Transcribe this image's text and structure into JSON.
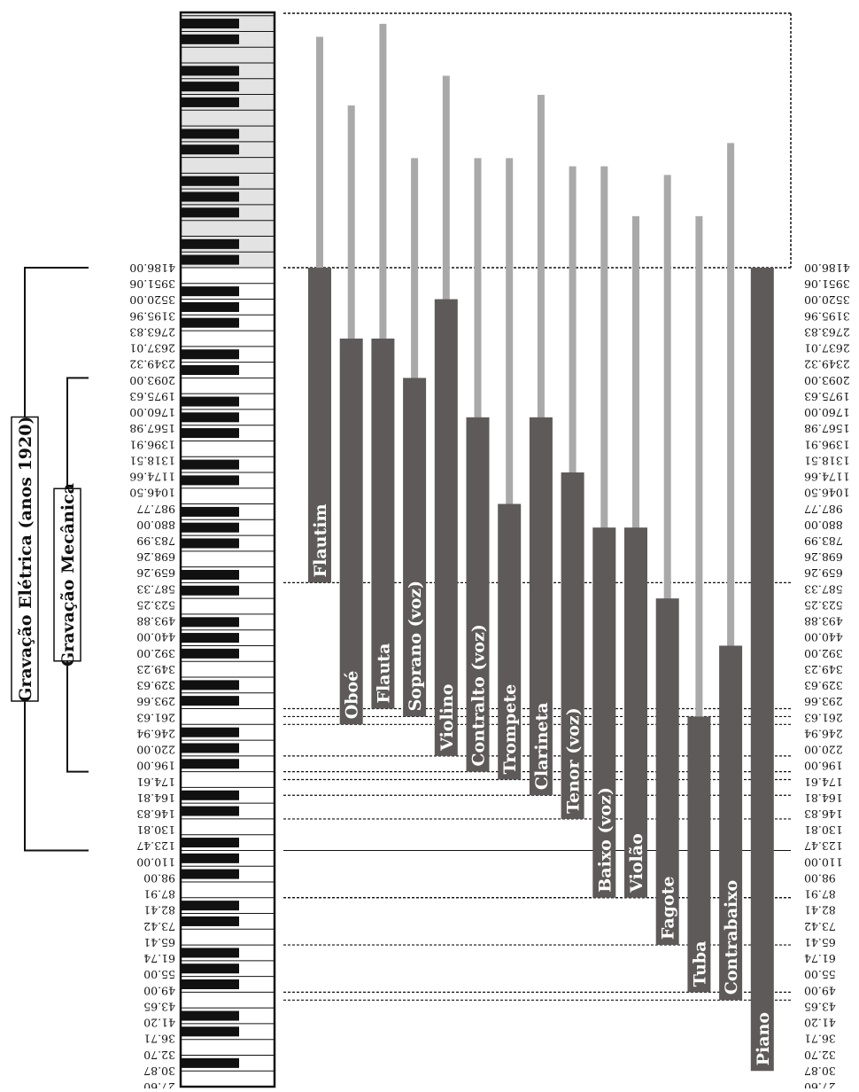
{
  "frequencies": [
    "4186.00",
    "3951.06",
    "3520.00",
    "3195.96",
    "2763.83",
    "2637.01",
    "2349.32",
    "2093.00",
    "1975.63",
    "1760.00",
    "1567.98",
    "1396.91",
    "1318.51",
    "1174.66",
    "1046.50",
    "987.77",
    "880.00",
    "783.99",
    "698.26",
    "659.26",
    "587.33",
    "523.25",
    "493.88",
    "440.00",
    "392.00",
    "349.23",
    "329.63",
    "293.66",
    "261.63",
    "246.94",
    "220.00",
    "196.00",
    "174.61",
    "164.81",
    "146.83",
    "130.81",
    "123.47",
    "110.00",
    "98.00",
    "87.91",
    "82.41",
    "73.42",
    "65.41",
    "61.74",
    "55.00",
    "49.00",
    "43.65",
    "41.20",
    "36.71",
    "32.70",
    "30.87",
    "27.60"
  ],
  "recording_ranges": {
    "electric": {
      "label": "Gravação Elétrica (anos 1920)",
      "high_hz": 4186.0,
      "low_hz": 110.0
    },
    "mechanical": {
      "label": "Gravação Mecânica",
      "high_hz": 2093.0,
      "low_hz": 174.61
    }
  },
  "instruments": [
    {
      "name": "Flautim",
      "low_hz": 587.33,
      "high_hz": 4186.0,
      "overtone_top_hz": 21000
    },
    {
      "name": "Oboé",
      "low_hz": 233.08,
      "high_hz": 2637.01,
      "overtone_top_hz": 13000
    },
    {
      "name": "Flauta",
      "low_hz": 261.63,
      "high_hz": 2637.01,
      "overtone_top_hz": 23000
    },
    {
      "name": "Soprano (voz)",
      "low_hz": 246.94,
      "high_hz": 2093.0,
      "overtone_top_hz": 9000
    },
    {
      "name": "Violino",
      "low_hz": 196.0,
      "high_hz": 3520.0,
      "overtone_top_hz": 16000
    },
    {
      "name": "Contralto (voz)",
      "low_hz": 174.61,
      "high_hz": 1567.98,
      "overtone_top_hz": 9000
    },
    {
      "name": "Trompete",
      "low_hz": 164.81,
      "high_hz": 987.77,
      "overtone_top_hz": 9000
    },
    {
      "name": "Clarineta",
      "low_hz": 146.83,
      "high_hz": 1567.98,
      "overtone_top_hz": 14000
    },
    {
      "name": "Tenor (voz)",
      "low_hz": 130.81,
      "high_hz": 1174.66,
      "overtone_top_hz": 8500
    },
    {
      "name": "Baixo (voz)",
      "low_hz": 82.41,
      "high_hz": 783.99,
      "overtone_top_hz": 8500
    },
    {
      "name": "Violão",
      "low_hz": 82.41,
      "high_hz": 783.99,
      "overtone_top_hz": 6000
    },
    {
      "name": "Fagote",
      "low_hz": 58.27,
      "high_hz": 523.25,
      "overtone_top_hz": 8000
    },
    {
      "name": "Tuba",
      "low_hz": 43.65,
      "high_hz": 246.94,
      "overtone_top_hz": 6000
    },
    {
      "name": "Contrabaixo",
      "low_hz": 41.2,
      "high_hz": 392.0,
      "overtone_top_hz": 10000
    },
    {
      "name": "Piano",
      "low_hz": 27.5,
      "high_hz": 4186.0,
      "overtone_top_hz": 3500
    }
  ],
  "colors": {
    "fundamental": "#5f5a5a",
    "overtones": "#a9a9a9",
    "keyboard_shade": "#e3e3e3",
    "black_key": "#111111",
    "line": "#111111"
  }
}
